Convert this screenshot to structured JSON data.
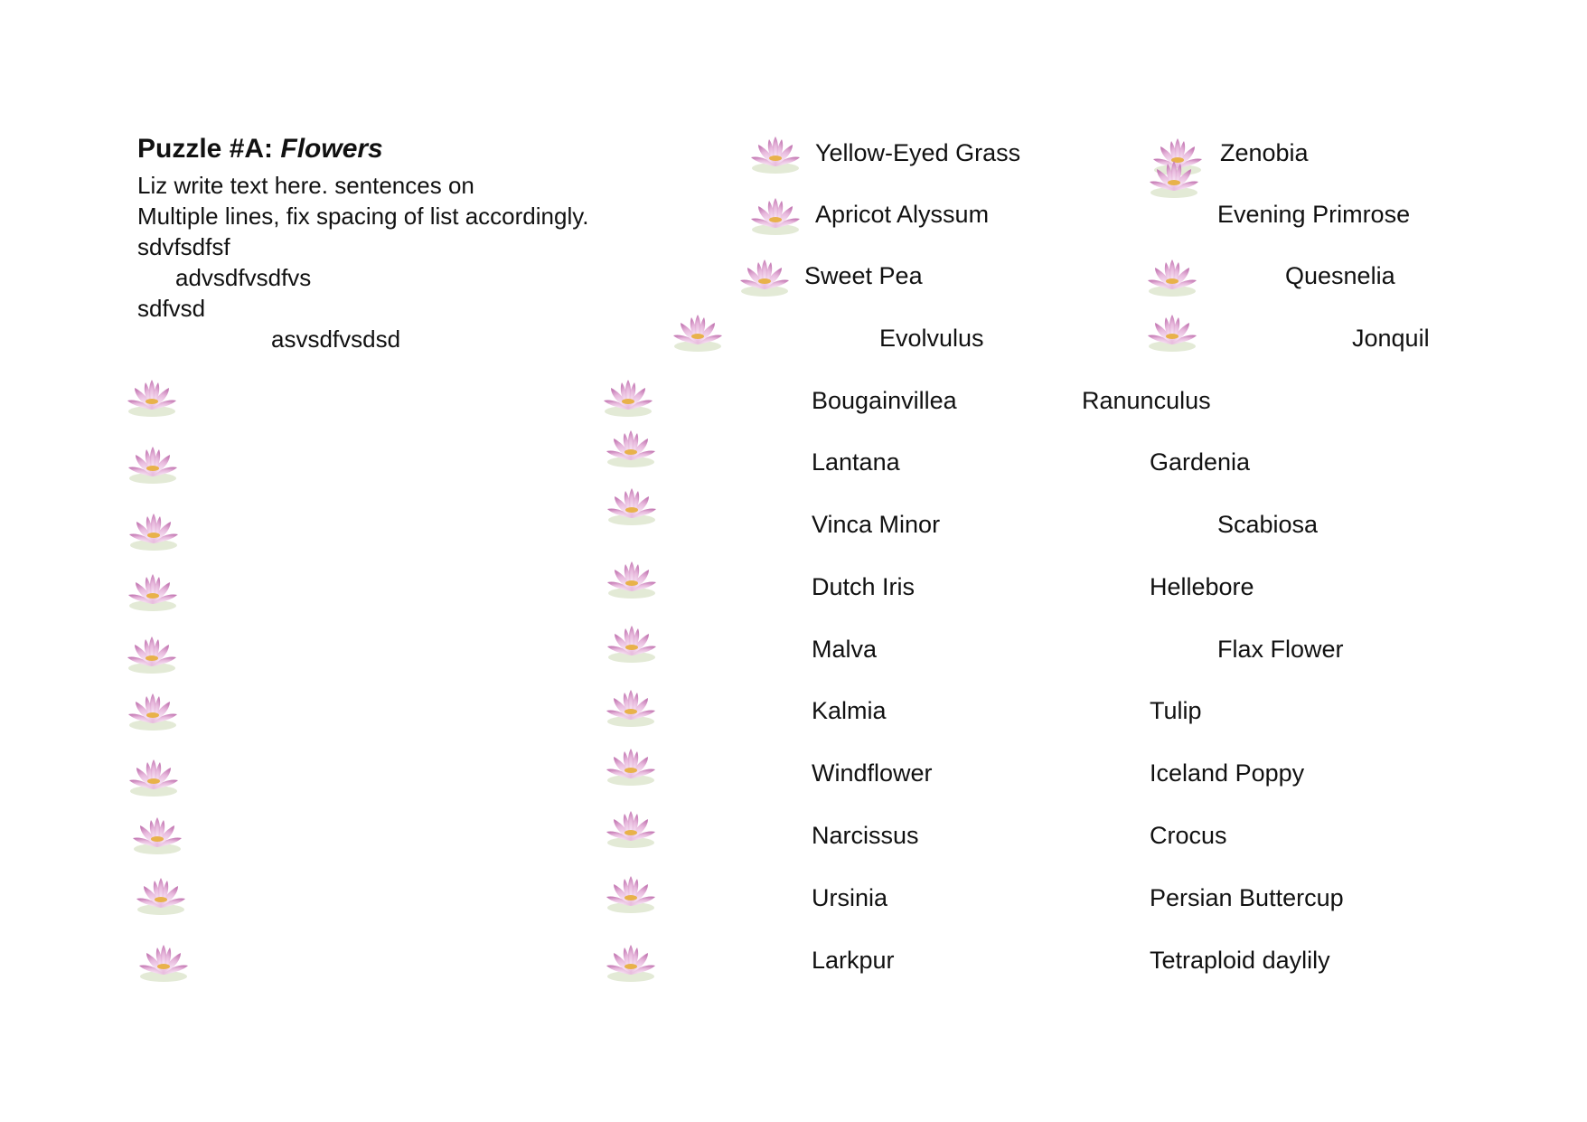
{
  "title": {
    "prefix": "Puzzle #A: ",
    "emphasis": "Flowers"
  },
  "body_lines": [
    "Liz write text here. sentences on",
    "Multiple lines, fix spacing of list accordingly.",
    "sdvfsdfsf",
    "advsdfvsdfvs",
    "sdfvsd",
    "asvsdfvsdsd"
  ],
  "flowers_top_middle": [
    "Yellow-Eyed Grass",
    "Apricot Alyssum",
    "Sweet Pea",
    "Evolvulus"
  ],
  "flowers_top_right": [
    "Zenobia",
    "Evening Primrose",
    "Quesnelia",
    "Jonquil"
  ],
  "flowers_list_middle": [
    "Bougainvillea",
    "Lantana",
    "Vinca Minor",
    "Dutch Iris",
    "Malva",
    "Kalmia",
    "Windflower",
    "Narcissus",
    "Ursinia",
    "Larkpur"
  ],
  "flowers_list_right": [
    "Ranunculus",
    "Gardenia",
    "Scabiosa",
    "Hellebore",
    "Flax Flower",
    "Tulip",
    "Iceland Poppy",
    "Crocus",
    "Persian Buttercup",
    "Tetraploid daylily"
  ],
  "icon": "lotus-flower-icon",
  "colors": {
    "petal": "#e7b8dc",
    "petal_edge": "#c57bb5",
    "center": "#e8b24a",
    "leaf": "#dfe6cf"
  }
}
